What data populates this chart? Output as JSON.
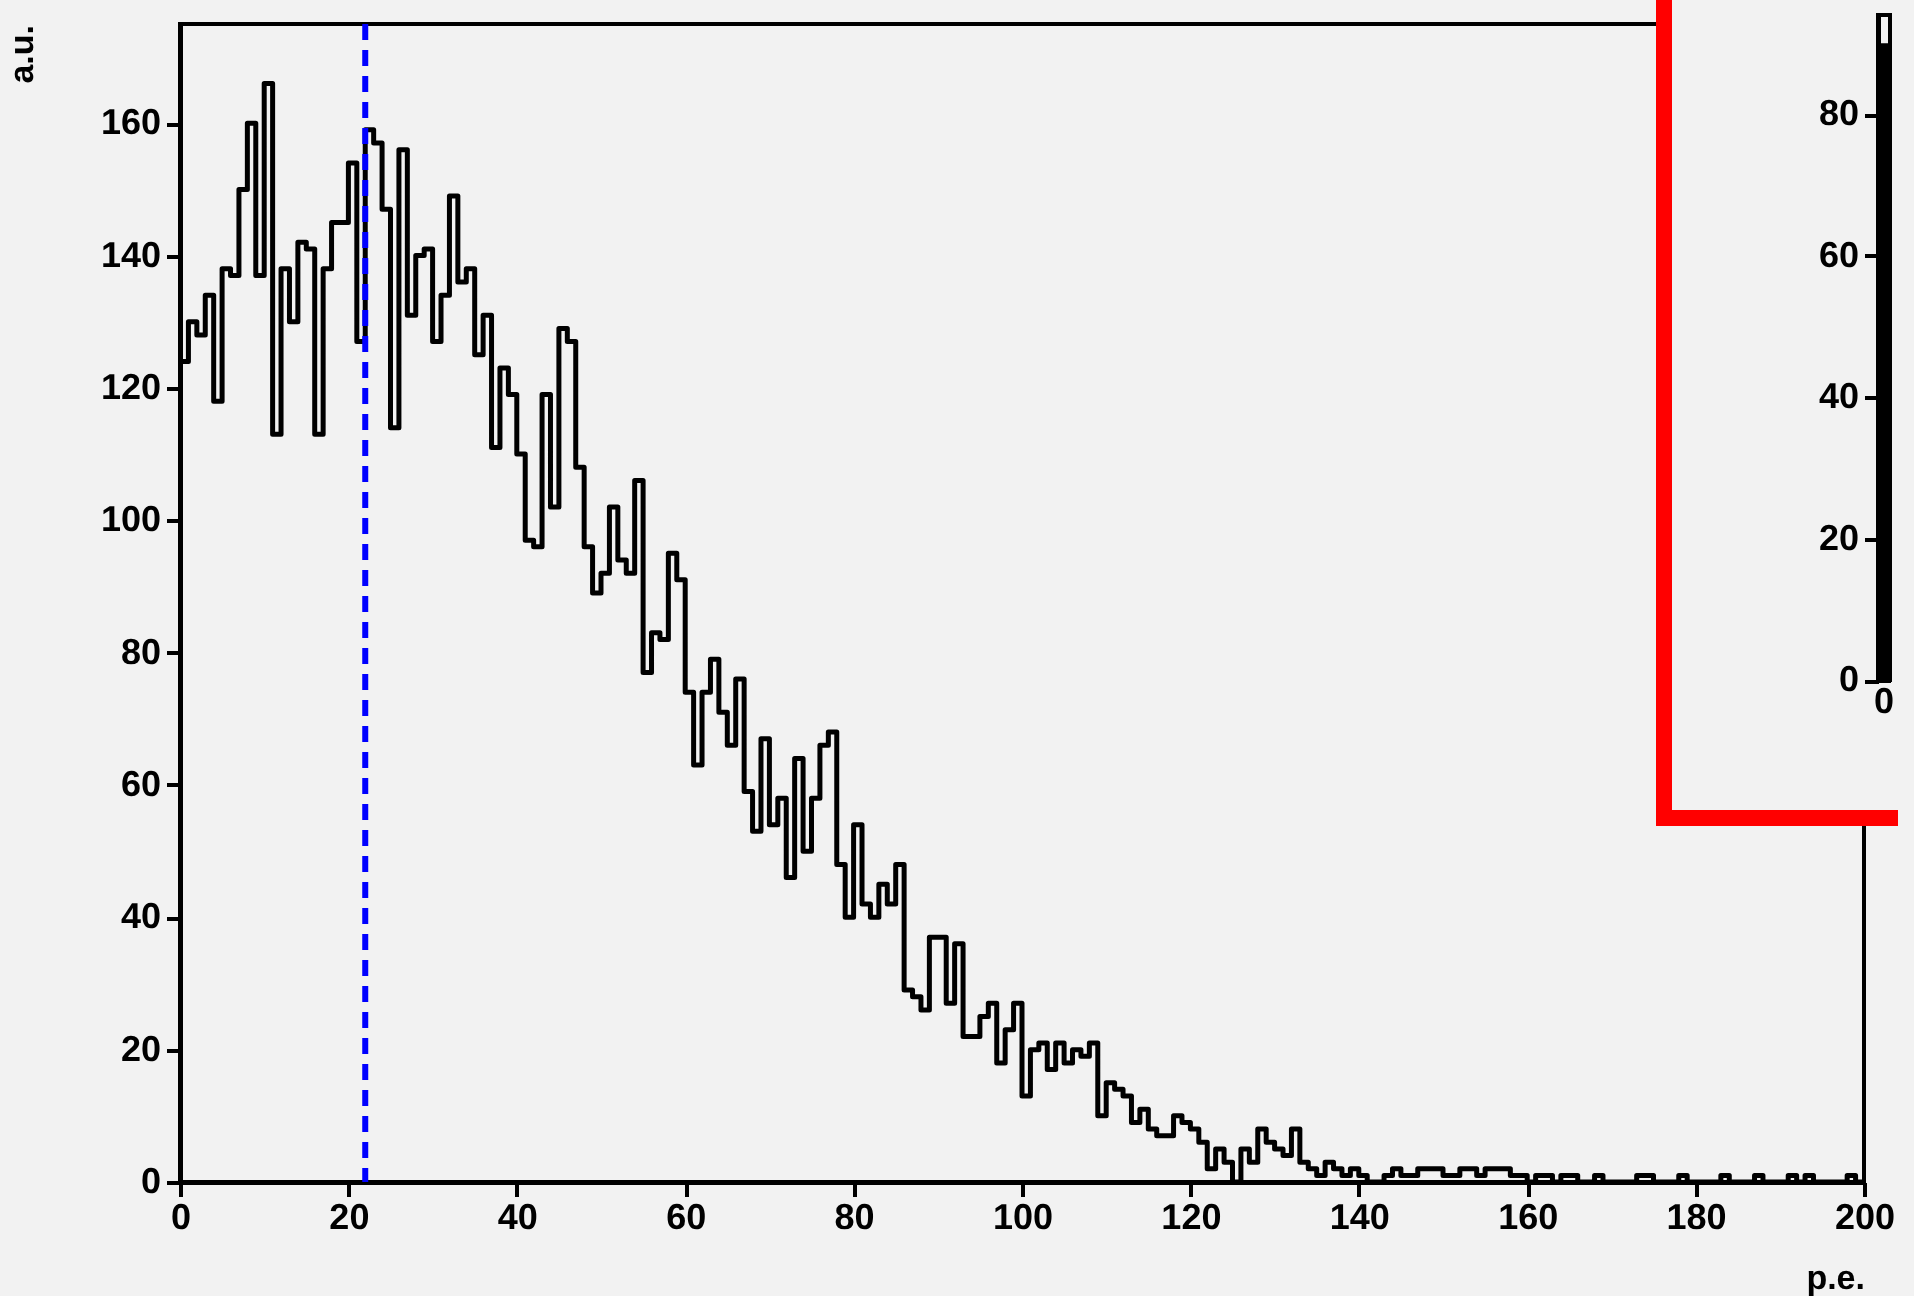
{
  "chart_data": [
    {
      "type": "histogram",
      "xlabel": "p.e.",
      "ylabel": "a.u.",
      "color": "#000000",
      "bins": [
        0,
        1,
        2,
        3,
        4,
        5,
        6,
        7,
        8,
        9,
        10,
        11,
        12,
        13,
        14,
        15,
        16,
        17,
        18,
        19,
        20,
        21,
        22,
        23,
        24,
        25,
        26,
        27,
        28,
        29,
        30,
        31,
        32,
        33,
        34,
        35,
        36,
        37,
        38,
        39,
        40,
        41,
        42,
        43,
        44,
        45,
        46,
        47,
        48,
        49,
        50,
        51,
        52,
        53,
        54,
        55,
        56,
        57,
        58,
        59,
        60,
        61,
        62,
        63,
        64,
        65,
        66,
        67,
        68,
        69,
        70,
        71,
        72,
        73,
        74,
        75,
        76,
        77,
        78,
        79,
        80,
        81,
        82,
        83,
        84,
        85,
        86,
        87,
        88,
        89,
        90,
        91,
        92,
        93,
        94,
        95,
        96,
        97,
        98,
        99,
        100,
        101,
        102,
        103,
        104,
        105,
        106,
        107,
        108,
        109,
        110,
        111,
        112,
        113,
        114,
        115,
        116,
        117,
        118,
        119,
        120,
        121,
        122,
        123,
        124,
        125,
        126,
        127,
        128,
        129,
        130,
        131,
        132,
        133,
        134,
        135,
        136,
        137,
        138,
        139,
        140,
        141,
        142,
        143,
        144,
        145,
        146,
        147,
        148,
        149,
        150,
        151,
        152,
        153,
        154,
        155,
        156,
        157,
        158,
        159,
        160,
        161,
        162,
        163,
        164,
        165,
        166,
        167,
        168,
        169,
        170,
        171,
        172,
        173,
        174,
        175,
        176,
        177,
        178,
        179,
        180,
        181,
        182,
        183,
        184,
        185,
        186,
        187,
        188,
        189,
        190,
        191,
        192,
        193,
        194,
        195,
        196,
        197,
        198,
        199,
        200
      ],
      "values": [
        124,
        130,
        128,
        134,
        118,
        138,
        137,
        150,
        160,
        137,
        166,
        113,
        138,
        130,
        142,
        141,
        113,
        138,
        145,
        145,
        154,
        127,
        159,
        157,
        147,
        114,
        156,
        131,
        140,
        141,
        127,
        134,
        149,
        136,
        138,
        125,
        131,
        111,
        123,
        119,
        110,
        97,
        96,
        119,
        102,
        129,
        127,
        108,
        96,
        89,
        92,
        102,
        94,
        92,
        106,
        77,
        83,
        82,
        95,
        91,
        74,
        63,
        74,
        79,
        71,
        66,
        76,
        59,
        53,
        67,
        54,
        58,
        46,
        64,
        50,
        58,
        66,
        68,
        48,
        40,
        54,
        42,
        40,
        45,
        42,
        48,
        29,
        28,
        26,
        37,
        37,
        27,
        36,
        22,
        22,
        25,
        27,
        18,
        23,
        27,
        13,
        20,
        21,
        17,
        21,
        18,
        20,
        19,
        21,
        10,
        15,
        14,
        13,
        9,
        11,
        8,
        7,
        7,
        10,
        9,
        8,
        6,
        2,
        5,
        3,
        0,
        5,
        3,
        8,
        6,
        5,
        4,
        8,
        3,
        2,
        1,
        3,
        2,
        1,
        2,
        1,
        0,
        0,
        1,
        2,
        1,
        1,
        2,
        2,
        2,
        1,
        1,
        2,
        2,
        1,
        2,
        2,
        2,
        1,
        1,
        0,
        1,
        1,
        0,
        1,
        1,
        0,
        0,
        1,
        0,
        0,
        0,
        0,
        1,
        1,
        0,
        0,
        0,
        1,
        0,
        0,
        0,
        0,
        1,
        0,
        0,
        0,
        1,
        0,
        0,
        0,
        1,
        0,
        1,
        0,
        0,
        0,
        0,
        1,
        0
      ],
      "xlim": [
        0,
        200
      ],
      "xticks": [
        0,
        20,
        40,
        60,
        80,
        100,
        120,
        140,
        160,
        180,
        200
      ],
      "ylim": [
        0,
        175
      ],
      "yticks": [
        0,
        20,
        40,
        60,
        80,
        100,
        120,
        140,
        160
      ],
      "ref_lines": [
        {
          "axis": "x",
          "value": 22,
          "color": "#0000ff",
          "line_style": "dashed"
        }
      ]
    },
    {
      "type": "bar",
      "color": "#000000",
      "categories": [
        "0"
      ],
      "values": [
        90
      ],
      "ylim": [
        0,
        94
      ],
      "yticks": [
        0,
        20,
        40,
        60,
        80
      ]
    }
  ]
}
